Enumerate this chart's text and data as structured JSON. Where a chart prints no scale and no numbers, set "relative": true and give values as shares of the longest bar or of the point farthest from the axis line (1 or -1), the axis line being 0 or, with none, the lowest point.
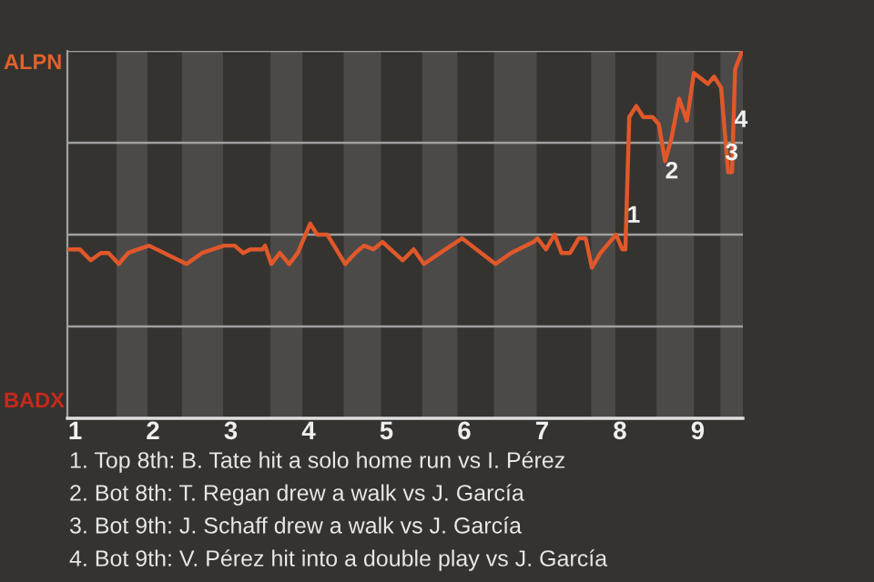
{
  "chart_data": {
    "type": "line",
    "relative": true,
    "x": [
      0.92,
      1.06,
      1.2,
      1.33,
      1.43,
      1.56,
      1.68,
      1.81,
      1.95,
      2.43,
      2.63,
      2.91,
      3.05,
      3.16,
      3.25,
      3.41,
      3.44,
      3.52,
      3.63,
      3.75,
      3.86,
      4.02,
      4.11,
      4.24,
      4.47,
      4.6,
      4.71,
      4.83,
      4.95,
      5.21,
      5.35,
      5.48,
      5.69,
      5.9,
      5.97,
      6.4,
      6.6,
      6.89,
      6.94,
      7.05,
      7.16,
      7.25,
      7.36,
      7.47,
      7.56,
      7.64,
      7.75,
      7.95,
      8.03,
      8.07,
      8.12,
      8.21,
      8.3,
      8.42,
      8.5,
      8.58,
      8.66,
      8.76,
      8.86,
      8.95,
      9.13,
      9.21,
      9.3,
      9.39,
      9.44,
      9.48,
      9.57
    ],
    "series": [
      {
        "color": "#e0582a",
        "values": [
          0.46,
          0.46,
          0.43,
          0.45,
          0.45,
          0.42,
          0.45,
          0.46,
          0.47,
          0.42,
          0.45,
          0.47,
          0.47,
          0.45,
          0.46,
          0.46,
          0.47,
          0.42,
          0.45,
          0.42,
          0.45,
          0.53,
          0.5,
          0.5,
          0.42,
          0.45,
          0.47,
          0.46,
          0.48,
          0.43,
          0.46,
          0.42,
          0.45,
          0.48,
          0.49,
          0.42,
          0.45,
          0.48,
          0.49,
          0.46,
          0.5,
          0.45,
          0.45,
          0.49,
          0.49,
          0.41,
          0.45,
          0.5,
          0.46,
          0.46,
          0.82,
          0.85,
          0.82,
          0.82,
          0.8,
          0.7,
          0.76,
          0.87,
          0.81,
          0.94,
          0.91,
          0.93,
          0.9,
          0.67,
          0.67,
          0.95,
          1.0
        ]
      }
    ],
    "xlim": [
      0.9,
      9.58
    ],
    "xticks": [
      1,
      2,
      3,
      4,
      5,
      6,
      7,
      8,
      9
    ],
    "marker": "none",
    "line_style": "solid",
    "ref_lines": [
      {
        "axis": "y",
        "value": 0.25,
        "color": "#a0a0a0"
      },
      {
        "axis": "y",
        "value": 0.5,
        "color": "#a0a0a0"
      },
      {
        "axis": "y",
        "value": 0.75,
        "color": "#a0a0a0"
      },
      {
        "axis": "y",
        "value": 1.0,
        "color": "#a0a0a0"
      }
    ],
    "bands": [
      {
        "axis": "x",
        "from": 1.53,
        "to": 1.93,
        "color": "#4c4a48"
      },
      {
        "axis": "x",
        "from": 2.37,
        "to": 2.9,
        "color": "#4c4a48"
      },
      {
        "axis": "x",
        "from": 3.51,
        "to": 3.92,
        "color": "#4c4a48"
      },
      {
        "axis": "x",
        "from": 4.45,
        "to": 4.93,
        "color": "#4c4a48"
      },
      {
        "axis": "x",
        "from": 5.46,
        "to": 5.91,
        "color": "#4c4a48"
      },
      {
        "axis": "x",
        "from": 6.38,
        "to": 6.93,
        "color": "#4c4a48"
      },
      {
        "axis": "x",
        "from": 7.63,
        "to": 7.94,
        "color": "#4c4a48"
      },
      {
        "axis": "x",
        "from": 8.47,
        "to": 8.95,
        "color": "#4c4a48"
      },
      {
        "axis": "x",
        "from": 9.29,
        "to": 9.58,
        "color": "#4c4a48"
      }
    ],
    "annotations": [
      "ALPN",
      "BADX",
      {
        "text": "1",
        "x": 8.09,
        "y": 0.58
      },
      {
        "text": "2",
        "x": 8.58,
        "y": 0.7
      },
      {
        "text": "3",
        "x": 9.35,
        "y": 0.75
      },
      {
        "text": "4",
        "x": 9.47,
        "y": 0.84
      },
      "1. Top 8th: B. Tate hit a solo home run vs I. Pérez",
      "2. Bot 8th: T. Regan drew a walk vs J. García",
      "3. Bot 9th: J. Schaff drew a walk vs J. García",
      "4. Bot 9th: V. Pérez hit into a double play vs J. García"
    ]
  }
}
